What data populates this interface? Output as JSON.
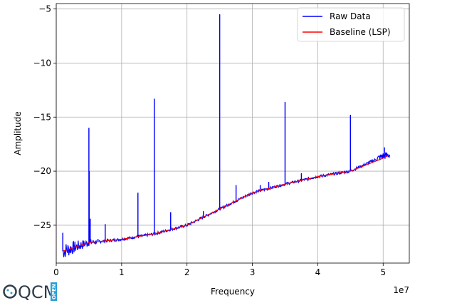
{
  "chart_data": {
    "type": "line",
    "xlabel": "Frequency",
    "ylabel": "Amplitude",
    "x_offset_label": "1e7",
    "xlim": [
      0,
      5.4
    ],
    "ylim": [
      -28.5,
      -4.5
    ],
    "grid": true,
    "legend_placement": "top-right",
    "x_ticks": [
      0,
      1,
      2,
      3,
      4,
      5
    ],
    "y_ticks": [
      -5,
      -10,
      -15,
      -20,
      -25
    ],
    "series": [
      {
        "name": "Raw Data",
        "color": "#0000ff",
        "x": [
          0.1,
          0.5,
          1.0,
          1.5,
          2.0,
          2.5,
          3.0,
          3.5,
          4.0,
          4.5,
          5.0,
          5.1
        ],
        "y": [
          -27.4,
          -26.6,
          -26.3,
          -25.8,
          -25.0,
          -23.5,
          -22.0,
          -21.2,
          -20.5,
          -20.0,
          -18.6,
          -18.5
        ],
        "peaks": [
          {
            "x": 0.1,
            "y": -25.7
          },
          {
            "x": 0.5,
            "y": -16.0
          },
          {
            "x": 0.505,
            "y": -20.0
          },
          {
            "x": 0.52,
            "y": -24.4
          },
          {
            "x": 0.75,
            "y": -24.9
          },
          {
            "x": 1.25,
            "y": -22.0
          },
          {
            "x": 1.5,
            "y": -13.3
          },
          {
            "x": 1.75,
            "y": -23.8
          },
          {
            "x": 2.25,
            "y": -23.7
          },
          {
            "x": 2.5,
            "y": -5.5
          },
          {
            "x": 2.75,
            "y": -21.3
          },
          {
            "x": 3.12,
            "y": -21.3
          },
          {
            "x": 3.25,
            "y": -21.0
          },
          {
            "x": 3.5,
            "y": -13.6
          },
          {
            "x": 3.75,
            "y": -20.2
          },
          {
            "x": 4.5,
            "y": -14.8
          },
          {
            "x": 5.02,
            "y": -17.8
          }
        ]
      },
      {
        "name": "Baseline (LSP)",
        "color": "#ff0000",
        "x": [
          0.1,
          0.5,
          1.0,
          1.5,
          2.0,
          2.5,
          3.0,
          3.5,
          4.0,
          4.5,
          5.0,
          5.1
        ],
        "y": [
          -27.4,
          -26.6,
          -26.3,
          -25.8,
          -25.0,
          -23.5,
          -22.0,
          -21.2,
          -20.5,
          -20.0,
          -18.8,
          -18.5
        ]
      }
    ]
  },
  "logo": {
    "text": "QCM",
    "badge": "OPEN"
  }
}
